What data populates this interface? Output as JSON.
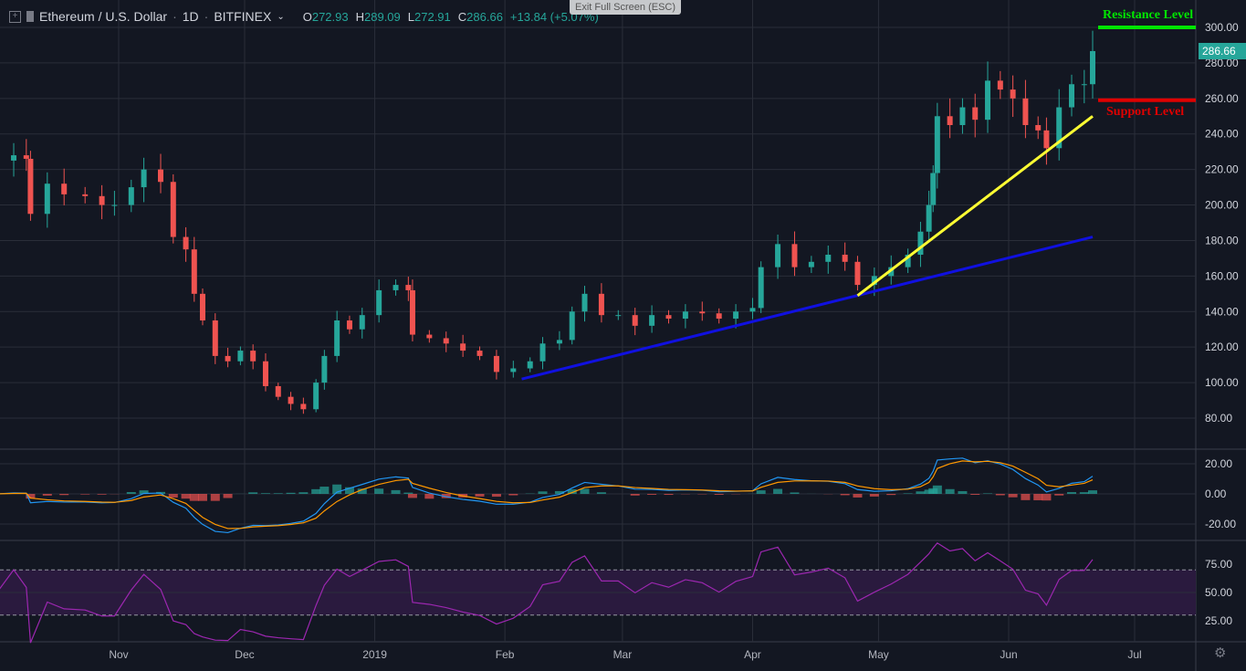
{
  "header": {
    "symbol": "Ethereum / U.S. Dollar",
    "interval": "1D",
    "exchange": "BITFINEX",
    "o_label": "O",
    "o": "272.93",
    "h_label": "H",
    "h": "289.09",
    "l_label": "L",
    "l": "272.91",
    "c_label": "C",
    "c": "286.66",
    "change": "+13.84 (+5.07%)"
  },
  "tooltip": "Exit Full Screen (ESC)",
  "annotations": {
    "resistance": "Resistance Level",
    "support": "Support Level"
  },
  "last_price": "286.66",
  "colors": {
    "background": "#131722",
    "up": "#26a69a",
    "down": "#ef5350",
    "resistance": "#00e600",
    "support": "#e00000",
    "trend_long": "#1010e0",
    "trend_short": "#ffff33",
    "rsi": "#9c27b0"
  },
  "chart_data": {
    "type": "candlestick",
    "title": "Ethereum / U.S. Dollar · 1D · BITFINEX",
    "x_ticks": [
      "Nov",
      "Dec",
      "2019",
      "Feb",
      "Mar",
      "Apr",
      "May",
      "Jun",
      "Jul"
    ],
    "y_ticks": [
      "80.00",
      "100.00",
      "120.00",
      "140.00",
      "160.00",
      "180.00",
      "200.00",
      "220.00",
      "240.00",
      "260.00",
      "280.00",
      "300.00"
    ],
    "ylim": [
      70,
      310
    ],
    "grid": true,
    "closes": [
      [
        "2018-10-03",
        225
      ],
      [
        "2018-10-07",
        228
      ],
      [
        "2018-10-10",
        226
      ],
      [
        "2018-10-11",
        195
      ],
      [
        "2018-10-15",
        212
      ],
      [
        "2018-10-19",
        206
      ],
      [
        "2018-10-24",
        205
      ],
      [
        "2018-10-28",
        200
      ],
      [
        "2018-10-31",
        200
      ],
      [
        "2018-11-04",
        210
      ],
      [
        "2018-11-07",
        220
      ],
      [
        "2018-11-11",
        213
      ],
      [
        "2018-11-14",
        182
      ],
      [
        "2018-11-17",
        175
      ],
      [
        "2018-11-19",
        150
      ],
      [
        "2018-11-21",
        135
      ],
      [
        "2018-11-24",
        115
      ],
      [
        "2018-11-27",
        112
      ],
      [
        "2018-11-30",
        118
      ],
      [
        "2018-12-03",
        112
      ],
      [
        "2018-12-06",
        98
      ],
      [
        "2018-12-09",
        92
      ],
      [
        "2018-12-12",
        88
      ],
      [
        "2018-12-15",
        85
      ],
      [
        "2018-12-18",
        100
      ],
      [
        "2018-12-20",
        115
      ],
      [
        "2018-12-23",
        135
      ],
      [
        "2018-12-26",
        130
      ],
      [
        "2018-12-29",
        138
      ],
      [
        "2019-01-02",
        152
      ],
      [
        "2019-01-06",
        155
      ],
      [
        "2019-01-09",
        152
      ],
      [
        "2019-01-10",
        127
      ],
      [
        "2019-01-14",
        125
      ],
      [
        "2019-01-18",
        122
      ],
      [
        "2019-01-22",
        118
      ],
      [
        "2019-01-26",
        115
      ],
      [
        "2019-01-30",
        106
      ],
      [
        "2019-02-03",
        108
      ],
      [
        "2019-02-07",
        112
      ],
      [
        "2019-02-10",
        122
      ],
      [
        "2019-02-14",
        124
      ],
      [
        "2019-02-17",
        140
      ],
      [
        "2019-02-20",
        150
      ],
      [
        "2019-02-24",
        138
      ],
      [
        "2019-02-28",
        138
      ],
      [
        "2019-03-04",
        132
      ],
      [
        "2019-03-08",
        138
      ],
      [
        "2019-03-12",
        136
      ],
      [
        "2019-03-16",
        140
      ],
      [
        "2019-03-20",
        139
      ],
      [
        "2019-03-24",
        136
      ],
      [
        "2019-03-28",
        140
      ],
      [
        "2019-04-01",
        142
      ],
      [
        "2019-04-03",
        165
      ],
      [
        "2019-04-07",
        178
      ],
      [
        "2019-04-11",
        165
      ],
      [
        "2019-04-15",
        168
      ],
      [
        "2019-04-19",
        172
      ],
      [
        "2019-04-23",
        168
      ],
      [
        "2019-04-26",
        155
      ],
      [
        "2019-04-30",
        160
      ],
      [
        "2019-05-04",
        165
      ],
      [
        "2019-05-08",
        172
      ],
      [
        "2019-05-11",
        185
      ],
      [
        "2019-05-13",
        200
      ],
      [
        "2019-05-14",
        218
      ],
      [
        "2019-05-15",
        250
      ],
      [
        "2019-05-18",
        245
      ],
      [
        "2019-05-21",
        255
      ],
      [
        "2019-05-24",
        248
      ],
      [
        "2019-05-27",
        270
      ],
      [
        "2019-05-30",
        265
      ],
      [
        "2019-06-02",
        260
      ],
      [
        "2019-06-05",
        245
      ],
      [
        "2019-06-08",
        242
      ],
      [
        "2019-06-10",
        232
      ],
      [
        "2019-06-13",
        255
      ],
      [
        "2019-06-16",
        268
      ],
      [
        "2019-06-19",
        268
      ],
      [
        "2019-06-21",
        286.66
      ]
    ],
    "trend_lines": [
      {
        "from": [
          "2019-02-05",
          102
        ],
        "to": [
          "2019-06-21",
          182
        ],
        "color": "#1010e0"
      },
      {
        "from": [
          "2019-04-26",
          149
        ],
        "to": [
          "2019-06-21",
          250
        ],
        "color": "#ffff33"
      }
    ],
    "levels": [
      {
        "label": "Resistance Level",
        "value": 300
      },
      {
        "label": "Support Level",
        "value": 259
      }
    ],
    "macd": {
      "y_ticks": [
        "20.00",
        "0.00",
        "-20.00"
      ]
    },
    "rsi": {
      "y_ticks": [
        "75.00",
        "50.00",
        "25.00"
      ],
      "band": [
        30,
        70
      ]
    }
  }
}
